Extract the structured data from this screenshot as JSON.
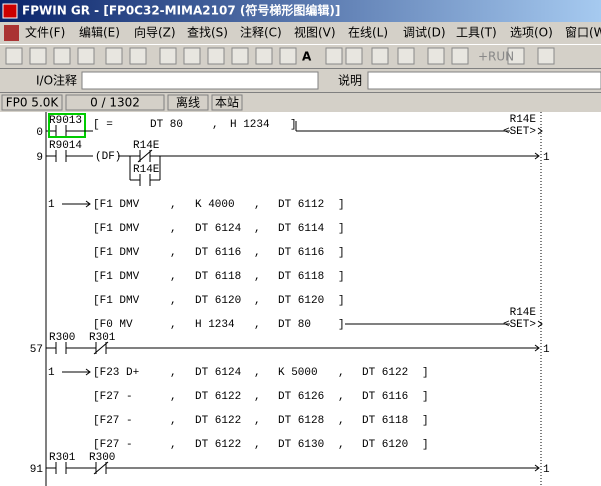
{
  "title_bar": "FPWIN GR - [FP0C32-MIMA2107 (符号梯形图编辑)]",
  "menu": [
    "文件(F)",
    "编辑(E)",
    "向导(Z)",
    "查找(S)",
    "注释(C)",
    "视图(V)",
    "在线(L)",
    "调试(D)",
    "工具(T)",
    "选项(O)",
    "窗口(W)"
  ],
  "toolbar": {
    "font_button": "A",
    "run_button": "+RUN"
  },
  "comment_bar": {
    "io_label": "I/O注释",
    "desc_label": "说明"
  },
  "status": [
    "FP0 5.0K",
    "0 / 1302",
    "离线",
    "本站"
  ],
  "ladder": {
    "rung0": {
      "step": "0",
      "contact": "R9013",
      "fields": [
        "[ =",
        "DT 80",
        ",",
        "H 1234",
        "]"
      ],
      "coil_device": "R14E",
      "coil": "<SET>"
    },
    "rung9": {
      "step": "9",
      "contact": "R9014",
      "df": "(DF)",
      "nc_contact": "R14E",
      "branch_contact": "R14E",
      "jump": "1"
    },
    "block1": {
      "jump": "1",
      "instructions": [
        [
          "[F1 DMV",
          ",",
          "K 4000",
          ",",
          "DT 6112",
          "]"
        ],
        [
          "[F1 DMV",
          ",",
          "DT 6124",
          ",",
          "DT 6114",
          "]"
        ],
        [
          "[F1 DMV",
          ",",
          "DT 6116",
          ",",
          "DT 6116",
          "]"
        ],
        [
          "[F1 DMV",
          ",",
          "DT 6118",
          ",",
          "DT 6118",
          "]"
        ],
        [
          "[F1 DMV",
          ",",
          "DT 6120",
          ",",
          "DT 6120",
          "]"
        ],
        [
          "[F0 MV",
          ",",
          "H 1234",
          ",",
          "DT 80",
          "]"
        ]
      ],
      "coil_device": "R14E",
      "coil": "<SET>"
    },
    "rung57": {
      "step": "57",
      "contact": "R300",
      "nc_contact": "R301",
      "jump": "1"
    },
    "block2": {
      "jump": "1",
      "instructions": [
        [
          "[F23 D+",
          ",",
          "DT 6124",
          ",",
          "K 5000",
          ",",
          "DT 6122",
          "]"
        ],
        [
          "[F27 -",
          ",",
          "DT 6122",
          ",",
          "DT 6126",
          ",",
          "DT 6116",
          "]"
        ],
        [
          "[F27 -",
          ",",
          "DT 6122",
          ",",
          "DT 6128",
          ",",
          "DT 6118",
          "]"
        ],
        [
          "[F27 -",
          ",",
          "DT 6122",
          ",",
          "DT 6130",
          ",",
          "DT 6120",
          "]"
        ]
      ]
    },
    "rung91": {
      "step": "91",
      "contact": "R301",
      "nc_contact": "R300",
      "jump": "1"
    }
  }
}
